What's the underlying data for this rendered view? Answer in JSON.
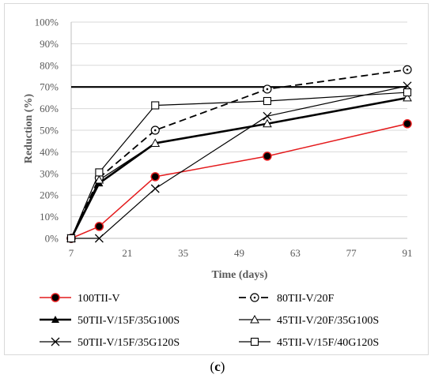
{
  "caption": {
    "open": "(",
    "letter": "c",
    "close": ")"
  },
  "chart_data": {
    "type": "line",
    "xlabel": "Time (days)",
    "ylabel": "Reduction (%)",
    "x_ticks": [
      7,
      21,
      35,
      49,
      63,
      77,
      91
    ],
    "y_ticks": [
      "0%",
      "10%",
      "20%",
      "30%",
      "40%",
      "50%",
      "60%",
      "70%",
      "80%",
      "90%",
      "100%"
    ],
    "xlim": [
      7,
      91
    ],
    "ylim": [
      0,
      100
    ],
    "reference_line": {
      "y": 70
    },
    "legend_position": "bottom",
    "series": [
      {
        "name": "100TII-V",
        "x": [
          7,
          14,
          28,
          56,
          91
        ],
        "values": [
          0,
          5.5,
          28.5,
          38,
          53
        ],
        "color": "#e41a1c",
        "marker": "filled-circle",
        "style": "solid",
        "width": 1.5
      },
      {
        "name": "80TII-V/20F",
        "x": [
          7,
          14,
          28,
          56,
          91
        ],
        "values": [
          0,
          28,
          50,
          69,
          78
        ],
        "color": "#000000",
        "marker": "circle-dot",
        "style": "dashed",
        "width": 1.8
      },
      {
        "name": "50TII-V/15F/35G100S",
        "x": [
          7,
          14,
          28,
          56,
          91
        ],
        "values": [
          0,
          25.5,
          44,
          53,
          65
        ],
        "color": "#000000",
        "marker": "filled-triangle",
        "style": "solid",
        "width": 2.6
      },
      {
        "name": "45TII-V/20F/35G100S",
        "x": [
          7,
          14,
          28,
          56,
          91
        ],
        "values": [
          0,
          27,
          44,
          53,
          65
        ],
        "color": "#000000",
        "marker": "open-triangle",
        "style": "solid",
        "width": 1.2
      },
      {
        "name": "50TII-V/15F/35G120S",
        "x": [
          7,
          14,
          28,
          56,
          91
        ],
        "values": [
          0,
          0,
          23,
          56.5,
          70.5
        ],
        "color": "#000000",
        "marker": "x",
        "style": "solid",
        "width": 1.2
      },
      {
        "name": "45TII-V/15F/40G120S",
        "x": [
          7,
          14,
          28,
          56,
          91
        ],
        "values": [
          0,
          30.5,
          61.5,
          63.5,
          67.5
        ],
        "color": "#000000",
        "marker": "open-square",
        "style": "solid",
        "width": 1.2
      }
    ]
  }
}
